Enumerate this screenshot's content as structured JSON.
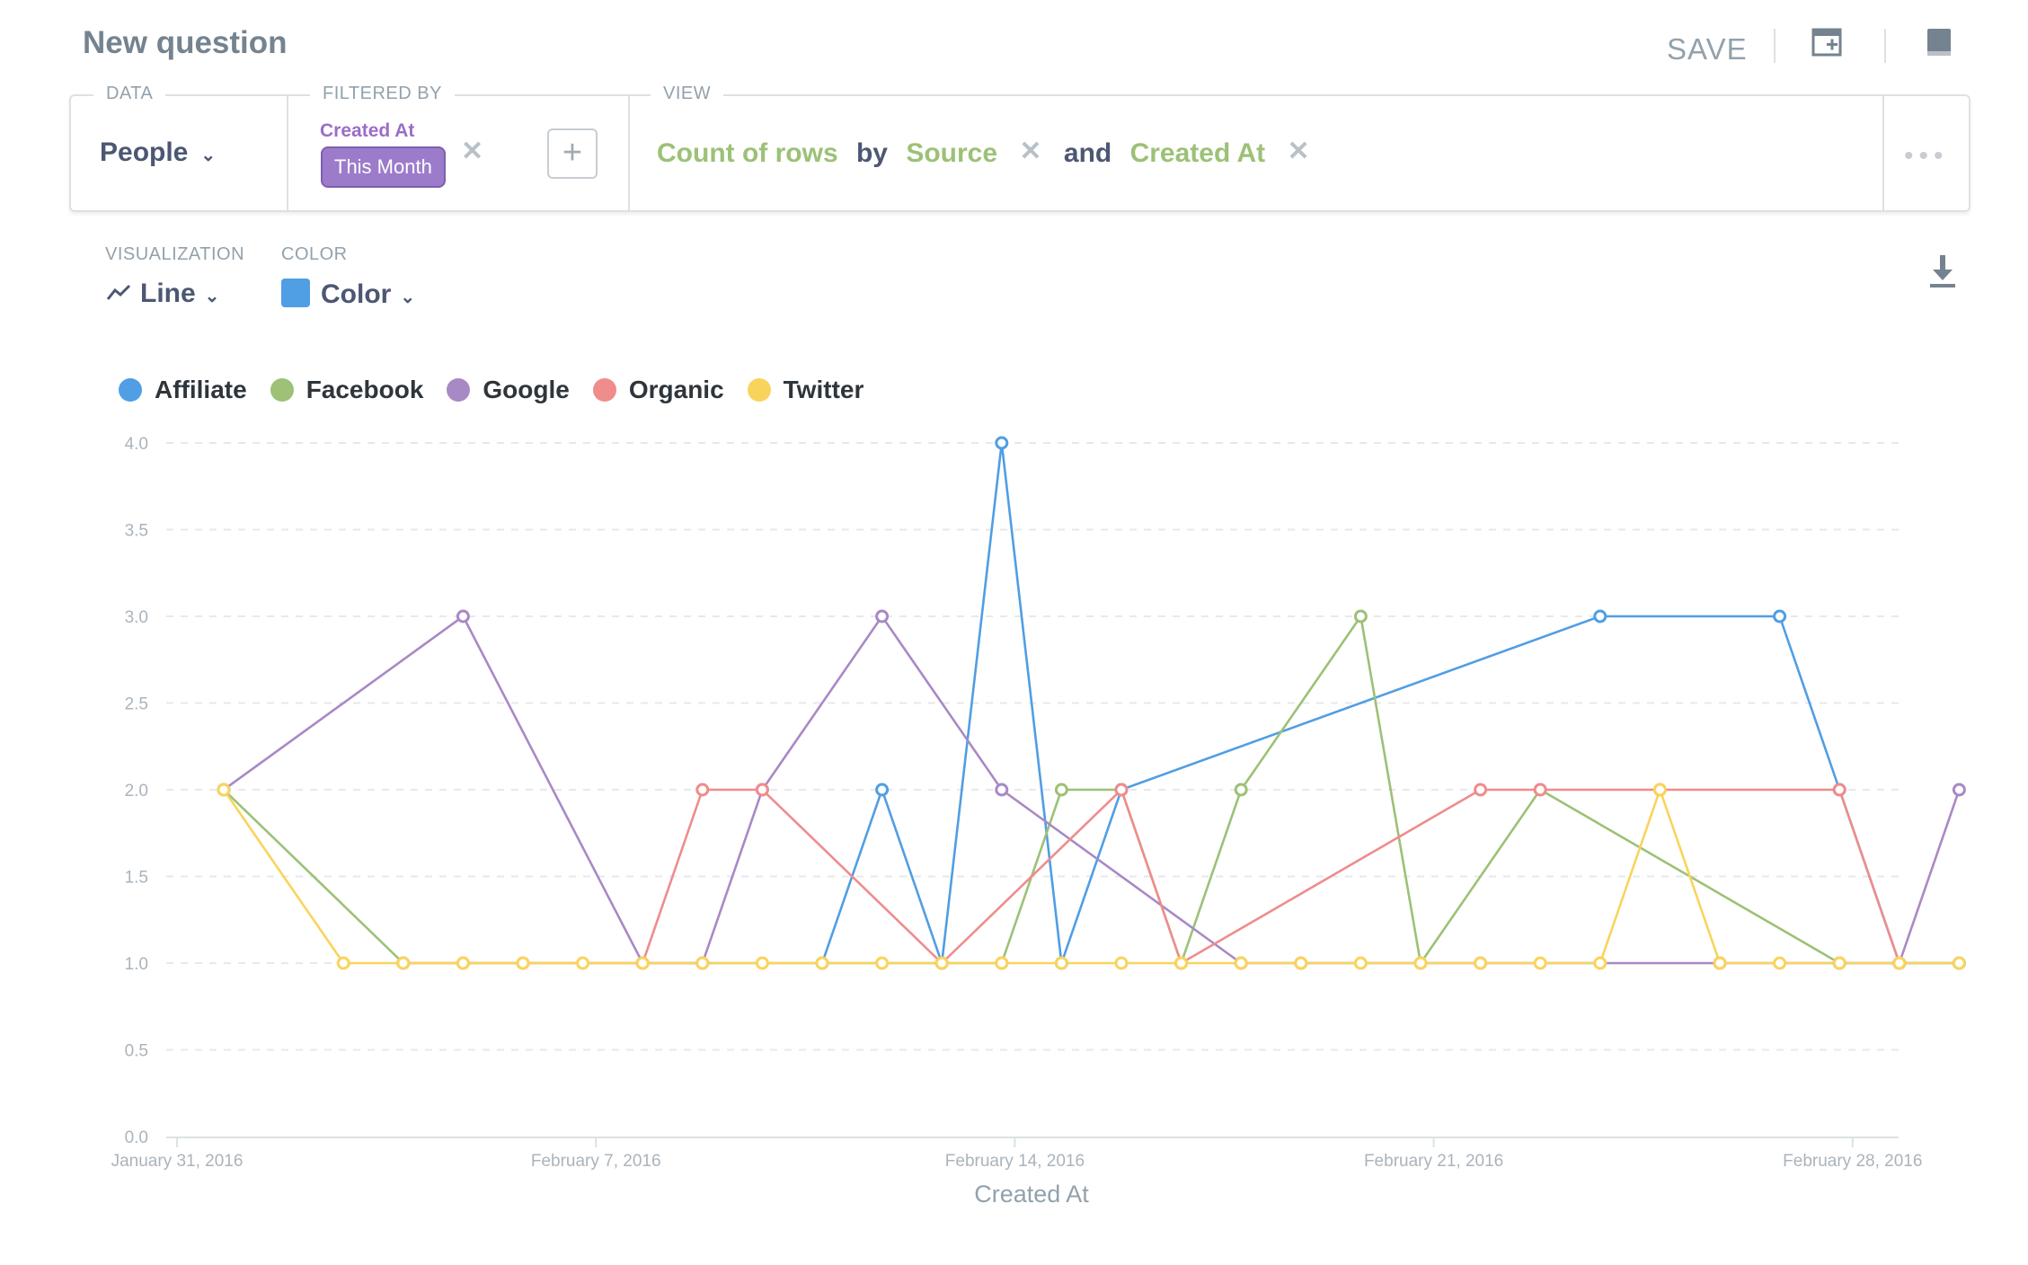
{
  "header": {
    "title": "New question",
    "save_label": "SAVE"
  },
  "query": {
    "data_label": "DATA",
    "data_value": "People",
    "filter_label": "FILTERED BY",
    "filter_field": "Created At",
    "filter_value": "This Month",
    "view_label": "VIEW",
    "metric": "Count of rows",
    "by_word": "by",
    "breakout_1": "Source",
    "and_word": "and",
    "breakout_2": "Created At"
  },
  "controls": {
    "visualization_label": "VISUALIZATION",
    "visualization_value": "Line",
    "color_label": "COLOR",
    "color_value": "Color",
    "color_swatch": "#509ee3"
  },
  "icons": {
    "add_to_dashboard": "add-to-dashboard-icon",
    "reference": "book-icon",
    "download": "download-icon",
    "line_chart": "line-chart-icon"
  },
  "chart_data": {
    "type": "line",
    "xlabel": "Created At",
    "ylabel": "",
    "ylim": [
      0,
      4
    ],
    "yticks": [
      "0.0",
      "0.5",
      "1.0",
      "1.5",
      "2.0",
      "2.5",
      "3.0",
      "3.5",
      "4.0"
    ],
    "xticks": [
      "January 31, 2016",
      "February 7, 2016",
      "February 14, 2016",
      "February 21, 2016",
      "February 28, 2016"
    ],
    "grid": true,
    "legend_position": "top-left",
    "series": [
      {
        "name": "Affiliate",
        "color": "#509ee3",
        "points": [
          [
            11,
            1
          ],
          [
            12,
            2
          ],
          [
            13,
            1
          ],
          [
            14,
            4
          ],
          [
            15,
            1
          ],
          [
            16,
            2
          ],
          [
            24,
            3
          ],
          [
            27,
            3
          ],
          [
            28,
            2
          ],
          [
            29,
            1
          ],
          [
            30,
            1
          ]
        ]
      },
      {
        "name": "Facebook",
        "color": "#9cc177",
        "points": [
          [
            1,
            2
          ],
          [
            4,
            1
          ],
          [
            14,
            1
          ],
          [
            15,
            2
          ],
          [
            16,
            2
          ],
          [
            17,
            1
          ],
          [
            18,
            2
          ],
          [
            20,
            3
          ],
          [
            21,
            1
          ],
          [
            23,
            2
          ],
          [
            28,
            1
          ],
          [
            29,
            1
          ],
          [
            30,
            1
          ]
        ]
      },
      {
        "name": "Google",
        "color": "#a989c5",
        "points": [
          [
            1,
            2
          ],
          [
            5,
            3
          ],
          [
            8,
            1
          ],
          [
            9,
            1
          ],
          [
            10,
            2
          ],
          [
            12,
            3
          ],
          [
            14,
            2
          ],
          [
            18,
            1
          ],
          [
            19,
            1
          ],
          [
            22,
            1
          ],
          [
            26,
            1
          ],
          [
            28,
            1
          ],
          [
            29,
            1
          ],
          [
            30,
            2
          ]
        ]
      },
      {
        "name": "Organic",
        "color": "#ef8c8c",
        "points": [
          [
            4,
            1
          ],
          [
            5,
            1
          ],
          [
            6,
            1
          ],
          [
            8,
            1
          ],
          [
            9,
            2
          ],
          [
            10,
            2
          ],
          [
            13,
            1
          ],
          [
            16,
            2
          ],
          [
            17,
            1
          ],
          [
            22,
            2
          ],
          [
            23,
            2
          ],
          [
            25,
            2
          ],
          [
            28,
            2
          ],
          [
            29,
            1
          ]
        ]
      },
      {
        "name": "Twitter",
        "color": "#f9d45c",
        "points": [
          [
            1,
            2
          ],
          [
            3,
            1
          ],
          [
            4,
            1
          ],
          [
            5,
            1
          ],
          [
            6,
            1
          ],
          [
            7,
            1
          ],
          [
            8,
            1
          ],
          [
            9,
            1
          ],
          [
            10,
            1
          ],
          [
            11,
            1
          ],
          [
            12,
            1
          ],
          [
            13,
            1
          ],
          [
            14,
            1
          ],
          [
            15,
            1
          ],
          [
            16,
            1
          ],
          [
            17,
            1
          ],
          [
            18,
            1
          ],
          [
            19,
            1
          ],
          [
            20,
            1
          ],
          [
            21,
            1
          ],
          [
            22,
            1
          ],
          [
            23,
            1
          ],
          [
            24,
            1
          ],
          [
            25,
            2
          ],
          [
            26,
            1
          ],
          [
            27,
            1
          ],
          [
            28,
            1
          ],
          [
            29,
            1
          ],
          [
            30,
            1
          ]
        ]
      }
    ]
  }
}
